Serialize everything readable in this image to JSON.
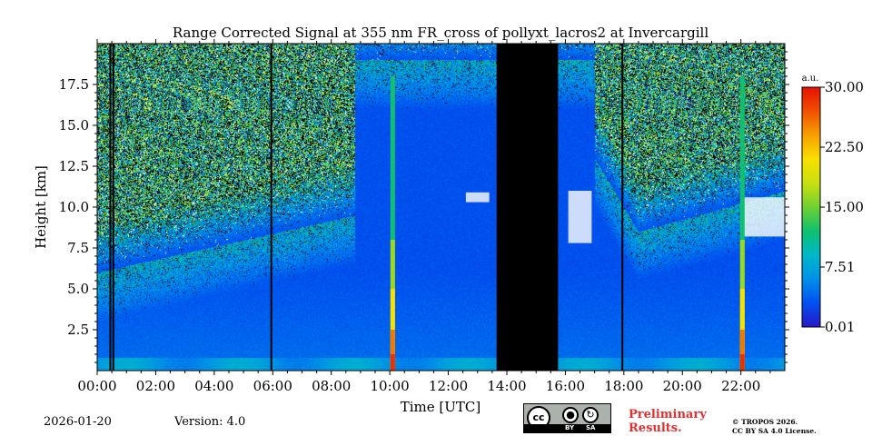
{
  "chart_data": {
    "type": "heatmap",
    "title": "Range Corrected Signal at 355 nm FR_cross of pollyxt_lacros2 at Invercargill",
    "xlabel": "Time [UTC]",
    "ylabel": "Height [km]",
    "xlim_hours": [
      0,
      23.5
    ],
    "ylim_km": [
      0,
      20
    ],
    "x_ticks": [
      {
        "value": 0,
        "label": "00:00"
      },
      {
        "value": 2,
        "label": "02:00"
      },
      {
        "value": 4,
        "label": "04:00"
      },
      {
        "value": 6,
        "label": "06:00"
      },
      {
        "value": 8,
        "label": "08:00"
      },
      {
        "value": 10,
        "label": "10:00"
      },
      {
        "value": 12,
        "label": "12:00"
      },
      {
        "value": 14,
        "label": "14:00"
      },
      {
        "value": 16,
        "label": "16:00"
      },
      {
        "value": 18,
        "label": "18:00"
      },
      {
        "value": 20,
        "label": "20:00"
      },
      {
        "value": 22,
        "label": "22:00"
      }
    ],
    "y_ticks": [
      {
        "value": 2.5,
        "label": "2.5"
      },
      {
        "value": 5.0,
        "label": "5.0"
      },
      {
        "value": 7.5,
        "label": "7.5"
      },
      {
        "value": 10.0,
        "label": "10.0"
      },
      {
        "value": 12.5,
        "label": "12.5"
      },
      {
        "value": 15.0,
        "label": "15.0"
      },
      {
        "value": 17.5,
        "label": "17.5"
      }
    ],
    "colorbar": {
      "unit": "a.u.",
      "min": 0.01,
      "max": 30.0,
      "ticks": [
        {
          "value": 0.01,
          "label": "0.01"
        },
        {
          "value": 7.51,
          "label": "7.51"
        },
        {
          "value": 15.0,
          "label": "15.00"
        },
        {
          "value": 22.5,
          "label": "22.50"
        },
        {
          "value": 30.0,
          "label": "30.00"
        }
      ],
      "colors": [
        "#2a18c8",
        "#0050f0",
        "#0090e8",
        "#00b8c8",
        "#10c070",
        "#70d030",
        "#c8e010",
        "#f8e000",
        "#f8a000",
        "#f05000",
        "#e81000"
      ]
    },
    "no_data_periods_hours": [
      [
        13.65,
        15.75
      ]
    ],
    "instrument_gaps_hours": [
      0.45,
      0.55,
      5.95,
      17.95
    ],
    "depolarization_spikes_hours": [
      10.1,
      22.05
    ],
    "clouds": [
      {
        "start_hour": 12.6,
        "end_hour": 13.4,
        "base_km": 10.3,
        "top_km": 10.9
      },
      {
        "start_hour": 16.1,
        "end_hour": 16.9,
        "base_km": 7.8,
        "top_km": 11.0
      },
      {
        "start_hour": 22.0,
        "end_hour": 23.5,
        "base_km": 8.2,
        "top_km": 10.6
      }
    ]
  },
  "footer": {
    "date": "2026-01-20",
    "version": "Version: 4.0",
    "preliminary": "Preliminary\nResults.",
    "copyright_line1": "© TROPOS 2026.",
    "copyright_line2": "CC BY SA 4.0 License.",
    "license_badge": {
      "cc": "cc",
      "by": "BY",
      "sa": "SA"
    }
  },
  "colors": {
    "preliminary": "#e03030",
    "no_data": "#000000"
  }
}
